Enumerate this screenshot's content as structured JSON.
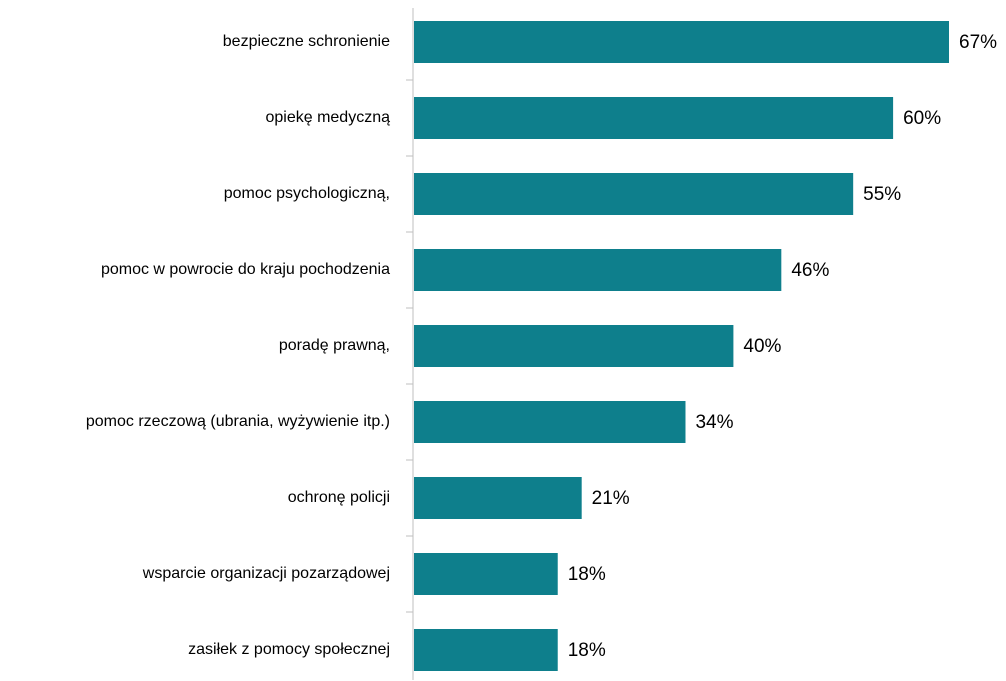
{
  "chart_data": {
    "type": "bar",
    "orientation": "horizontal",
    "categories": [
      "bezpieczne schronienie",
      "opiekę medyczną",
      "pomoc psychologiczną,",
      "pomoc w powrocie do kraju pochodzenia",
      "poradę prawną,",
      "pomoc rzeczową (ubrania, wyżywienie itp.)",
      "ochronę policji",
      "wsparcie organizacji pozarządowej",
      "zasiłek z pomocy społecznej"
    ],
    "values": [
      67,
      60,
      55,
      46,
      40,
      34,
      21,
      18,
      18
    ],
    "value_labels": [
      "67%",
      "60%",
      "55%",
      "46%",
      "40%",
      "34%",
      "21%",
      "18%",
      "18%"
    ],
    "color": "#0e7f8c"
  }
}
